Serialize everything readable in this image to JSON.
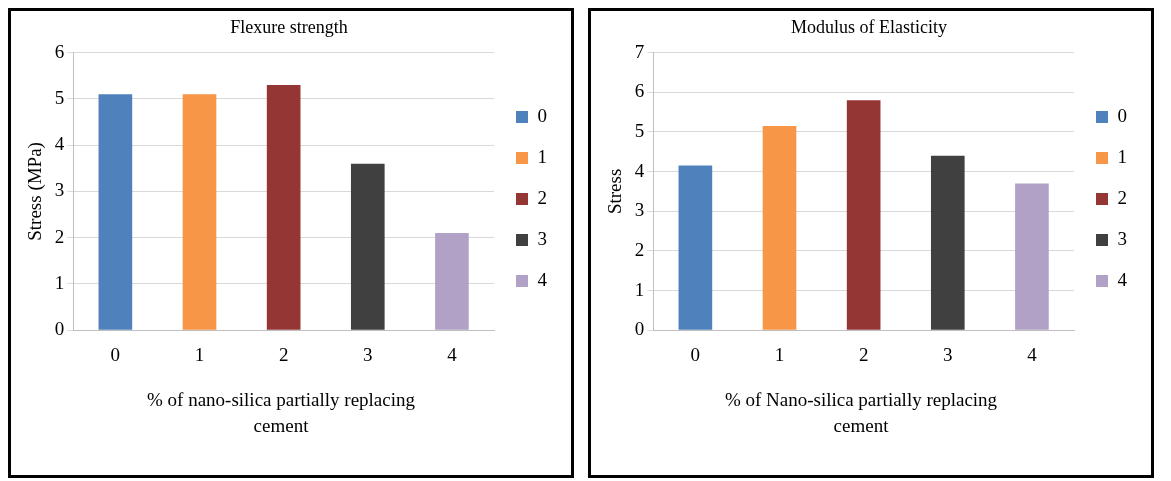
{
  "chart_data": [
    {
      "type": "bar",
      "title": "Flexure strength",
      "xlabel": "% of nano-silica partially replacing cement",
      "ylabel": "Stress (MPa)",
      "categories": [
        "0",
        "1",
        "2",
        "3",
        "4"
      ],
      "series": [
        {
          "name": "0",
          "color": "#4f81bd",
          "values": [
            5.1,
            null,
            null,
            null,
            null
          ]
        },
        {
          "name": "1",
          "color": "#f79646",
          "values": [
            null,
            5.1,
            null,
            null,
            null
          ]
        },
        {
          "name": "2",
          "color": "#943634",
          "values": [
            null,
            null,
            5.3,
            null,
            null
          ]
        },
        {
          "name": "3",
          "color": "#404040",
          "values": [
            null,
            null,
            null,
            3.6,
            null
          ]
        },
        {
          "name": "4",
          "color": "#b2a1c7",
          "values": [
            null,
            null,
            null,
            null,
            2.1
          ]
        }
      ],
      "ylim": [
        0,
        6
      ],
      "yticks": [
        0,
        1,
        2,
        3,
        4,
        5,
        6
      ],
      "grid": "y",
      "legend": "right"
    },
    {
      "type": "bar",
      "title": "Modulus of Elasticity",
      "xlabel": "% of Nano-silica partially replacing cement",
      "ylabel": "Stress",
      "categories": [
        "0",
        "1",
        "2",
        "3",
        "4"
      ],
      "series": [
        {
          "name": "0",
          "color": "#4f81bd",
          "values": [
            4.15,
            null,
            null,
            null,
            null
          ]
        },
        {
          "name": "1",
          "color": "#f79646",
          "values": [
            null,
            5.15,
            null,
            null,
            null
          ]
        },
        {
          "name": "2",
          "color": "#943634",
          "values": [
            null,
            null,
            5.8,
            null,
            null
          ]
        },
        {
          "name": "3",
          "color": "#404040",
          "values": [
            null,
            null,
            null,
            4.4,
            null
          ]
        },
        {
          "name": "4",
          "color": "#b2a1c7",
          "values": [
            null,
            null,
            null,
            null,
            3.7
          ]
        }
      ],
      "ylim": [
        0,
        7
      ],
      "yticks": [
        0,
        1,
        2,
        3,
        4,
        5,
        6,
        7
      ],
      "grid": "y",
      "legend": "right"
    }
  ]
}
